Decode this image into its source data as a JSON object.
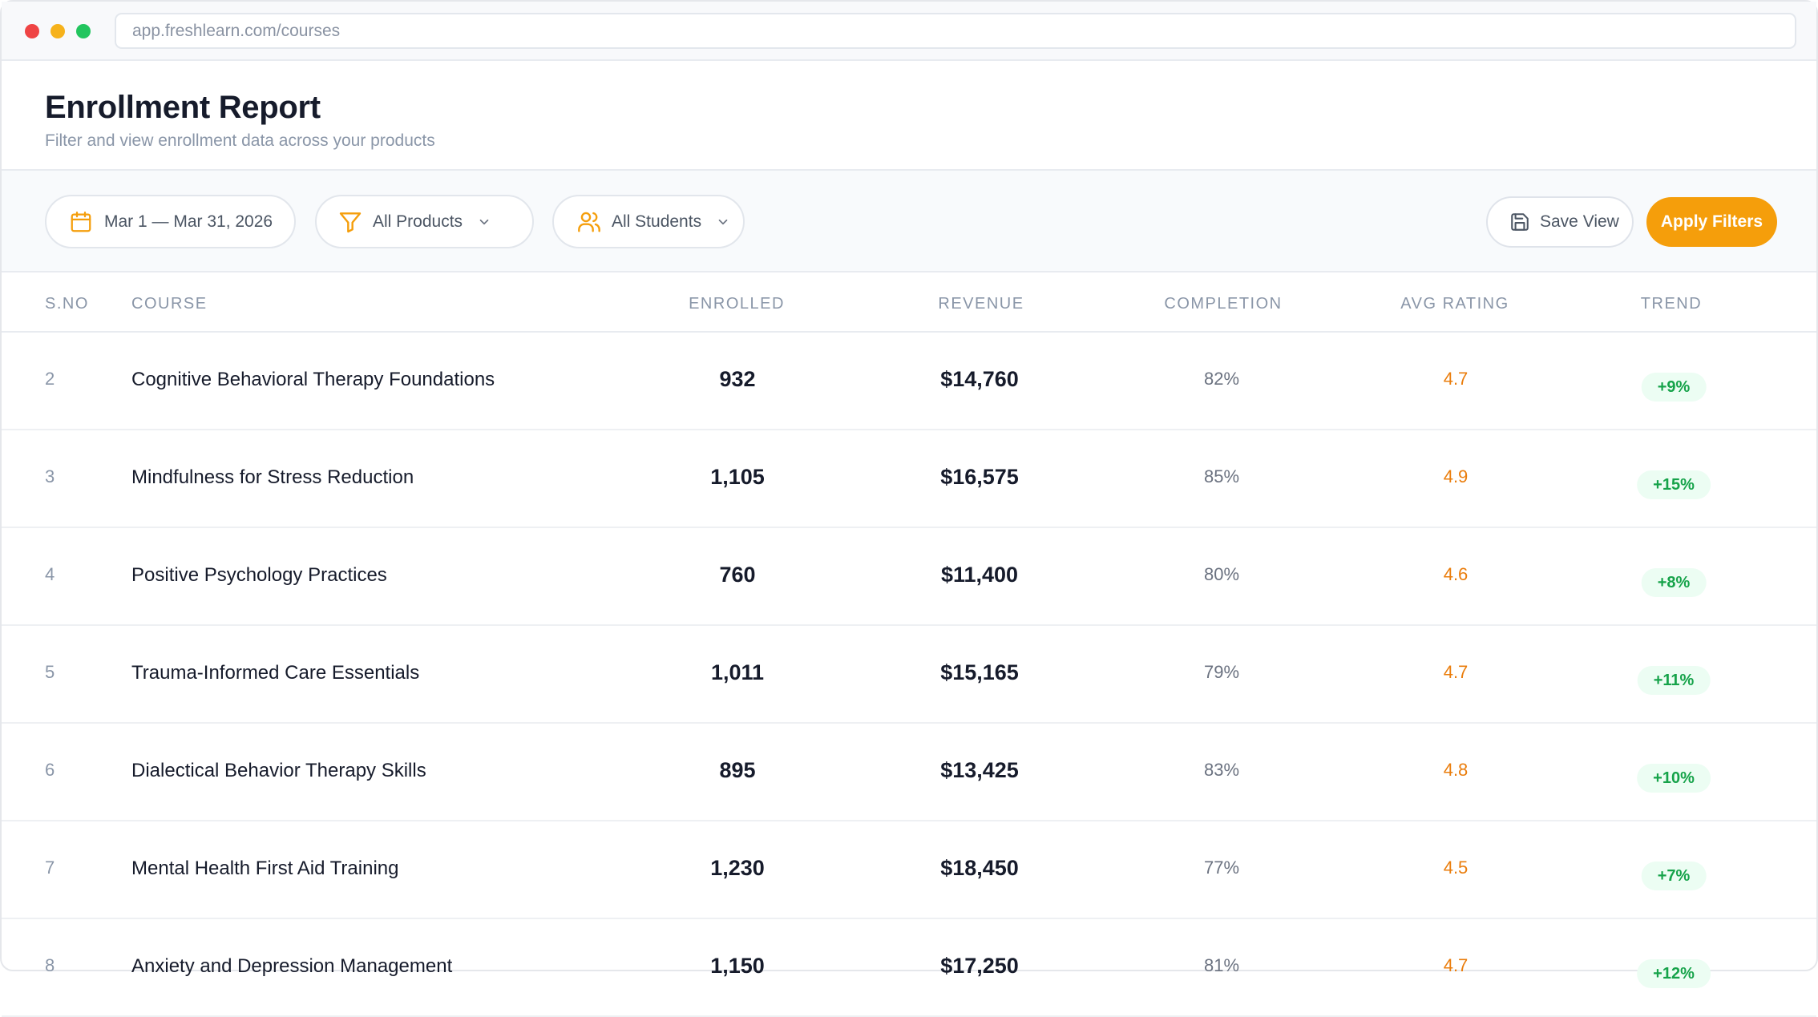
{
  "browser": {
    "url": "app.freshlearn.com/courses"
  },
  "header": {
    "title": "Enrollment Report",
    "subtitle": "Filter and view enrollment data across your products"
  },
  "filters": {
    "date_range": "Mar 1 — Mar 31, 2026",
    "products": "All Products",
    "students": "All Students",
    "save_view_label": "Save View",
    "apply_label": "Apply Filters"
  },
  "colors": {
    "accent": "#f59e0b",
    "rating": "#ea7d0c",
    "trend_positive": "#16a34a",
    "trend_bg": "#ecfdf3"
  },
  "table": {
    "columns": {
      "sno": "S.NO",
      "course": "COURSE",
      "enrolled": "ENROLLED",
      "revenue": "REVENUE",
      "completion": "COMPLETION",
      "rating": "AVG RATING",
      "trend": "TREND"
    },
    "rows": [
      {
        "sno": "2",
        "course": "Cognitive Behavioral Therapy Foundations",
        "enrolled": "932",
        "revenue": "$14,760",
        "completion": "82%",
        "rating": "4.7",
        "trend": "+9%"
      },
      {
        "sno": "3",
        "course": "Mindfulness for Stress Reduction",
        "enrolled": "1,105",
        "revenue": "$16,575",
        "completion": "85%",
        "rating": "4.9",
        "trend": "+15%"
      },
      {
        "sno": "4",
        "course": "Positive Psychology Practices",
        "enrolled": "760",
        "revenue": "$11,400",
        "completion": "80%",
        "rating": "4.6",
        "trend": "+8%"
      },
      {
        "sno": "5",
        "course": "Trauma-Informed Care Essentials",
        "enrolled": "1,011",
        "revenue": "$15,165",
        "completion": "79%",
        "rating": "4.7",
        "trend": "+11%"
      },
      {
        "sno": "6",
        "course": "Dialectical Behavior Therapy Skills",
        "enrolled": "895",
        "revenue": "$13,425",
        "completion": "83%",
        "rating": "4.8",
        "trend": "+10%"
      },
      {
        "sno": "7",
        "course": "Mental Health First Aid Training",
        "enrolled": "1,230",
        "revenue": "$18,450",
        "completion": "77%",
        "rating": "4.5",
        "trend": "+7%"
      },
      {
        "sno": "8",
        "course": "Anxiety and Depression Management",
        "enrolled": "1,150",
        "revenue": "$17,250",
        "completion": "81%",
        "rating": "4.7",
        "trend": "+12%"
      }
    ]
  }
}
